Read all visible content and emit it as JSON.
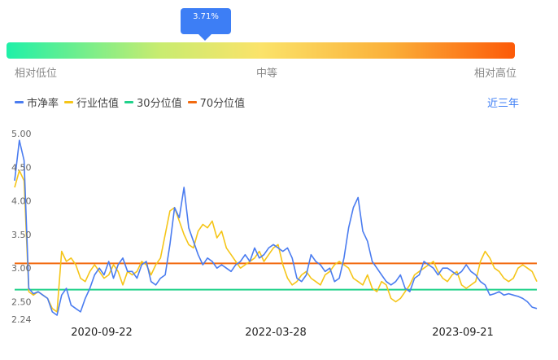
{
  "tooltip": {
    "value": "3.71%"
  },
  "gauge": {
    "percentile": 0.0371,
    "labels": {
      "low": "相对低位",
      "mid": "中等",
      "high": "相对高位"
    }
  },
  "legend": [
    {
      "name": "市净率",
      "color": "#4a7cf0"
    },
    {
      "name": "行业估值",
      "color": "#f5c518"
    },
    {
      "name": "30分位值",
      "color": "#20d18a"
    },
    {
      "name": "70分位值",
      "color": "#f26a10"
    }
  ],
  "range_button": "近三年",
  "chart_data": {
    "type": "line",
    "ylim": [
      2.24,
      5.0
    ],
    "yticks": [
      "5.00",
      "4.50",
      "4.00",
      "3.50",
      "3.00",
      "2.50",
      "2.24"
    ],
    "xticks": [
      "2020-09-22",
      "2022-03-28",
      "2023-09-21"
    ],
    "percentile_30": 2.68,
    "percentile_70": 3.07,
    "series": [
      {
        "name": "市净率",
        "color": "#4a7cf0",
        "values": [
          4.3,
          4.9,
          4.6,
          2.7,
          2.62,
          2.65,
          2.6,
          2.55,
          2.35,
          2.3,
          2.6,
          2.7,
          2.45,
          2.4,
          2.35,
          2.55,
          2.7,
          2.9,
          3.0,
          2.9,
          3.1,
          2.85,
          3.05,
          3.15,
          2.95,
          2.95,
          2.85,
          3.05,
          3.1,
          2.8,
          2.75,
          2.85,
          2.9,
          3.35,
          3.9,
          3.75,
          4.2,
          3.6,
          3.4,
          3.2,
          3.05,
          3.15,
          3.1,
          3.0,
          3.05,
          3.0,
          2.95,
          3.05,
          3.1,
          3.2,
          3.1,
          3.3,
          3.15,
          3.2,
          3.3,
          3.35,
          3.3,
          3.25,
          3.3,
          3.15,
          2.85,
          2.8,
          2.9,
          3.2,
          3.1,
          3.05,
          2.95,
          3.0,
          2.8,
          2.85,
          3.15,
          3.6,
          3.9,
          4.05,
          3.55,
          3.4,
          3.1,
          3.0,
          2.9,
          2.8,
          2.75,
          2.8,
          2.9,
          2.7,
          2.65,
          2.85,
          2.9,
          3.1,
          3.05,
          3.0,
          2.9,
          3.0,
          3.0,
          2.95,
          2.9,
          2.95,
          3.05,
          2.95,
          2.9,
          2.8,
          2.75,
          2.6,
          2.62,
          2.65,
          2.6,
          2.62,
          2.6,
          2.58,
          2.55,
          2.5,
          2.42,
          2.4
        ]
      },
      {
        "name": "行业估值",
        "color": "#f5c518",
        "values": [
          4.2,
          4.45,
          4.3,
          2.65,
          2.6,
          2.65,
          2.6,
          2.55,
          2.4,
          2.35,
          3.25,
          3.1,
          3.15,
          3.05,
          2.85,
          2.8,
          2.95,
          3.05,
          2.95,
          2.85,
          2.9,
          3.05,
          2.95,
          2.75,
          2.95,
          2.9,
          2.95,
          3.1,
          3.05,
          2.9,
          3.05,
          3.15,
          3.5,
          3.85,
          3.9,
          3.7,
          3.5,
          3.35,
          3.3,
          3.55,
          3.65,
          3.6,
          3.7,
          3.45,
          3.55,
          3.3,
          3.2,
          3.1,
          3.0,
          3.05,
          3.1,
          3.15,
          3.25,
          3.1,
          3.2,
          3.3,
          3.35,
          3.05,
          2.85,
          2.75,
          2.8,
          2.9,
          2.95,
          2.85,
          2.8,
          2.75,
          2.9,
          2.95,
          3.05,
          3.1,
          3.05,
          3.0,
          2.85,
          2.8,
          2.75,
          2.9,
          2.7,
          2.65,
          2.8,
          2.75,
          2.55,
          2.5,
          2.55,
          2.65,
          2.75,
          2.9,
          2.95,
          3.0,
          3.05,
          3.1,
          2.95,
          2.85,
          2.8,
          2.9,
          2.95,
          2.75,
          2.7,
          2.75,
          2.8,
          3.1,
          3.25,
          3.15,
          3.0,
          2.95,
          2.85,
          2.8,
          2.85,
          3.0,
          3.05,
          3.0,
          2.95,
          2.8
        ]
      }
    ]
  }
}
